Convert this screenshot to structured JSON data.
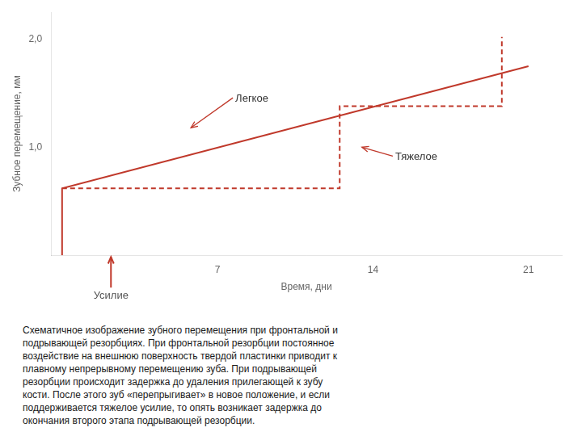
{
  "chart_data": {
    "type": "line",
    "xlabel": "Время, дни",
    "ylabel": "Зубное перемещение, мм",
    "xlim": [
      -0.5,
      22.5
    ],
    "ylim": [
      0.0,
      2.25
    ],
    "xticks": [
      7,
      14,
      21
    ],
    "yticks": [
      {
        "value": 1.0,
        "label": "1,0"
      },
      {
        "value": 2.0,
        "label": "2,0"
      }
    ],
    "grid": false,
    "series": [
      {
        "color": "#c0392b",
        "line_style": "solid",
        "x": [
          0.0,
          0.0,
          21.0
        ],
        "values": [
          0.0,
          0.62,
          1.75
        ]
      },
      {
        "color": "#c0392b",
        "line_style": "dashed",
        "x": [
          0.0,
          12.5,
          12.5,
          19.8,
          19.8
        ],
        "values": [
          0.62,
          0.62,
          1.38,
          1.38,
          2.02
        ]
      }
    ],
    "annotations": [
      {
        "text": "Легкое",
        "xy": [
          5.8,
          1.18
        ],
        "xytext": [
          7.8,
          1.42
        ],
        "color": "#c0392b"
      },
      {
        "text": "Тяжелое",
        "xy": [
          13.5,
          1.0
        ],
        "xytext": [
          15.0,
          0.88
        ],
        "color": "#c0392b"
      },
      {
        "text": "Усилие",
        "x": 2.2,
        "color": "#c0392b"
      }
    ],
    "caption": [
      "Схематичное изображение зубного перемещения при фронтальной и",
      "подрывающей резорбциях. При фронтальной резорбции постоянное",
      "воздействие на внешнюю поверхность твердой пластинки приводит к",
      "плавному непрерывному перемещению зуба. При подрывающей",
      "резорбции происходит задержка до удаления прилегающей к зубу",
      "кости. После этого зуб «перепрыгивает» в новое положение, и если",
      "поддерживается тяжелое усилие, то опять возникает задержка до",
      "окончания второго этапа подрывающей резорбции."
    ]
  }
}
